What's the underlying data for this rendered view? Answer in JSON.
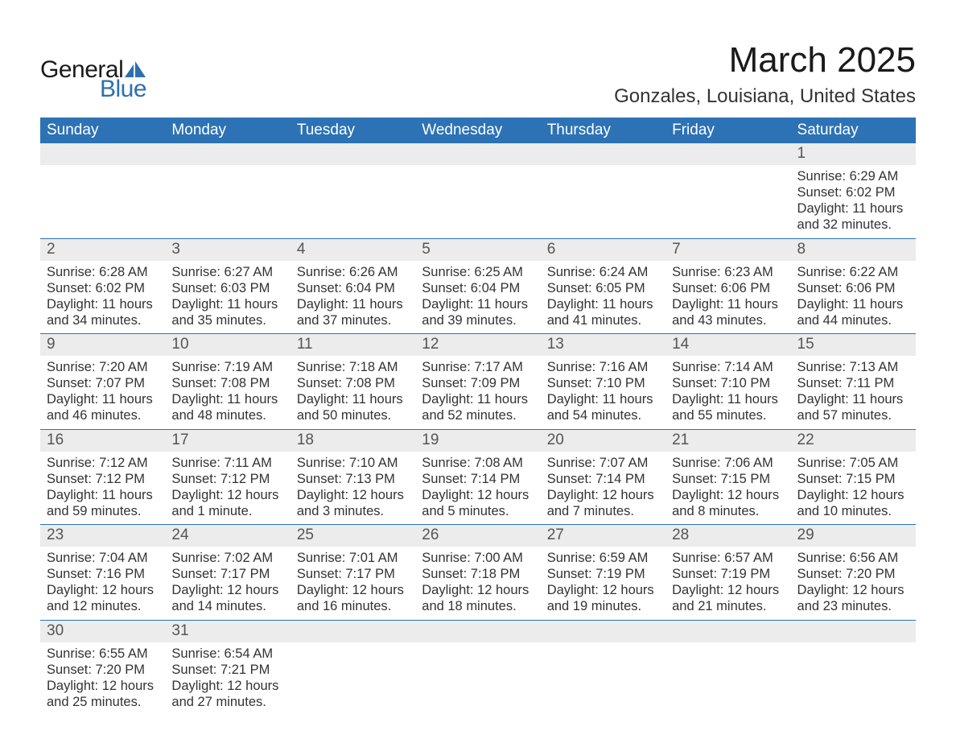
{
  "brand": {
    "word1": "General",
    "word2": "Blue"
  },
  "title": "March 2025",
  "location": "Gonzales, Louisiana, United States",
  "colors": {
    "header_bg": "#2c72b5",
    "header_text": "#ffffff",
    "daynum_bg": "#ececec",
    "daynum_text": "#555555",
    "body_text": "#333333",
    "rule": "#2c72b5",
    "logo_accent": "#2c6fb0"
  },
  "day_headers": [
    "Sunday",
    "Monday",
    "Tuesday",
    "Wednesday",
    "Thursday",
    "Friday",
    "Saturday"
  ],
  "weeks": [
    [
      null,
      null,
      null,
      null,
      null,
      null,
      {
        "n": "1",
        "sr": "6:29 AM",
        "ss": "6:02 PM",
        "dl": "11 hours and 32 minutes."
      }
    ],
    [
      {
        "n": "2",
        "sr": "6:28 AM",
        "ss": "6:02 PM",
        "dl": "11 hours and 34 minutes."
      },
      {
        "n": "3",
        "sr": "6:27 AM",
        "ss": "6:03 PM",
        "dl": "11 hours and 35 minutes."
      },
      {
        "n": "4",
        "sr": "6:26 AM",
        "ss": "6:04 PM",
        "dl": "11 hours and 37 minutes."
      },
      {
        "n": "5",
        "sr": "6:25 AM",
        "ss": "6:04 PM",
        "dl": "11 hours and 39 minutes."
      },
      {
        "n": "6",
        "sr": "6:24 AM",
        "ss": "6:05 PM",
        "dl": "11 hours and 41 minutes."
      },
      {
        "n": "7",
        "sr": "6:23 AM",
        "ss": "6:06 PM",
        "dl": "11 hours and 43 minutes."
      },
      {
        "n": "8",
        "sr": "6:22 AM",
        "ss": "6:06 PM",
        "dl": "11 hours and 44 minutes."
      }
    ],
    [
      {
        "n": "9",
        "sr": "7:20 AM",
        "ss": "7:07 PM",
        "dl": "11 hours and 46 minutes."
      },
      {
        "n": "10",
        "sr": "7:19 AM",
        "ss": "7:08 PM",
        "dl": "11 hours and 48 minutes."
      },
      {
        "n": "11",
        "sr": "7:18 AM",
        "ss": "7:08 PM",
        "dl": "11 hours and 50 minutes."
      },
      {
        "n": "12",
        "sr": "7:17 AM",
        "ss": "7:09 PM",
        "dl": "11 hours and 52 minutes."
      },
      {
        "n": "13",
        "sr": "7:16 AM",
        "ss": "7:10 PM",
        "dl": "11 hours and 54 minutes."
      },
      {
        "n": "14",
        "sr": "7:14 AM",
        "ss": "7:10 PM",
        "dl": "11 hours and 55 minutes."
      },
      {
        "n": "15",
        "sr": "7:13 AM",
        "ss": "7:11 PM",
        "dl": "11 hours and 57 minutes."
      }
    ],
    [
      {
        "n": "16",
        "sr": "7:12 AM",
        "ss": "7:12 PM",
        "dl": "11 hours and 59 minutes."
      },
      {
        "n": "17",
        "sr": "7:11 AM",
        "ss": "7:12 PM",
        "dl": "12 hours and 1 minute."
      },
      {
        "n": "18",
        "sr": "7:10 AM",
        "ss": "7:13 PM",
        "dl": "12 hours and 3 minutes."
      },
      {
        "n": "19",
        "sr": "7:08 AM",
        "ss": "7:14 PM",
        "dl": "12 hours and 5 minutes."
      },
      {
        "n": "20",
        "sr": "7:07 AM",
        "ss": "7:14 PM",
        "dl": "12 hours and 7 minutes."
      },
      {
        "n": "21",
        "sr": "7:06 AM",
        "ss": "7:15 PM",
        "dl": "12 hours and 8 minutes."
      },
      {
        "n": "22",
        "sr": "7:05 AM",
        "ss": "7:15 PM",
        "dl": "12 hours and 10 minutes."
      }
    ],
    [
      {
        "n": "23",
        "sr": "7:04 AM",
        "ss": "7:16 PM",
        "dl": "12 hours and 12 minutes."
      },
      {
        "n": "24",
        "sr": "7:02 AM",
        "ss": "7:17 PM",
        "dl": "12 hours and 14 minutes."
      },
      {
        "n": "25",
        "sr": "7:01 AM",
        "ss": "7:17 PM",
        "dl": "12 hours and 16 minutes."
      },
      {
        "n": "26",
        "sr": "7:00 AM",
        "ss": "7:18 PM",
        "dl": "12 hours and 18 minutes."
      },
      {
        "n": "27",
        "sr": "6:59 AM",
        "ss": "7:19 PM",
        "dl": "12 hours and 19 minutes."
      },
      {
        "n": "28",
        "sr": "6:57 AM",
        "ss": "7:19 PM",
        "dl": "12 hours and 21 minutes."
      },
      {
        "n": "29",
        "sr": "6:56 AM",
        "ss": "7:20 PM",
        "dl": "12 hours and 23 minutes."
      }
    ],
    [
      {
        "n": "30",
        "sr": "6:55 AM",
        "ss": "7:20 PM",
        "dl": "12 hours and 25 minutes."
      },
      {
        "n": "31",
        "sr": "6:54 AM",
        "ss": "7:21 PM",
        "dl": "12 hours and 27 minutes."
      },
      null,
      null,
      null,
      null,
      null
    ]
  ],
  "labels": {
    "sunrise": "Sunrise:",
    "sunset": "Sunset:",
    "daylight": "Daylight:"
  }
}
